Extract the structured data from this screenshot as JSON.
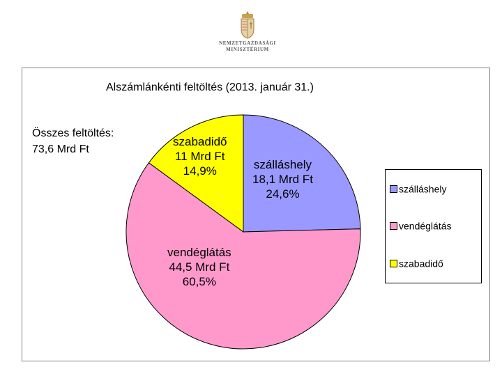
{
  "logo": {
    "icon": "hungarian-coat-of-arms",
    "line1": "NEMZETGAZDASÁGI",
    "line2": "MINISZTÉRIUM"
  },
  "title": "Alszámlánkénti feltöltés (2013. január 31.)",
  "total": {
    "line1": "Összes feltöltés:",
    "line2": "73,6 Mrd Ft"
  },
  "chart_data": {
    "type": "pie",
    "unit": "Mrd Ft",
    "start_angle_deg": 0,
    "direction": "clockwise",
    "slices": [
      {
        "name": "szálláshely",
        "value": 18.1,
        "value_label": "18,1 Mrd Ft",
        "percent_label": "24,6%",
        "color": "#9999ff"
      },
      {
        "name": "vendéglátás",
        "value": 44.5,
        "value_label": "44,5 Mrd Ft",
        "percent_label": "60,5%",
        "color": "#ff99cc"
      },
      {
        "name": "szabadidő",
        "value": 11.0,
        "value_label": "11 Mrd Ft",
        "percent_label": "14,9%",
        "color": "#ffff00"
      }
    ],
    "legend_position": "right"
  }
}
